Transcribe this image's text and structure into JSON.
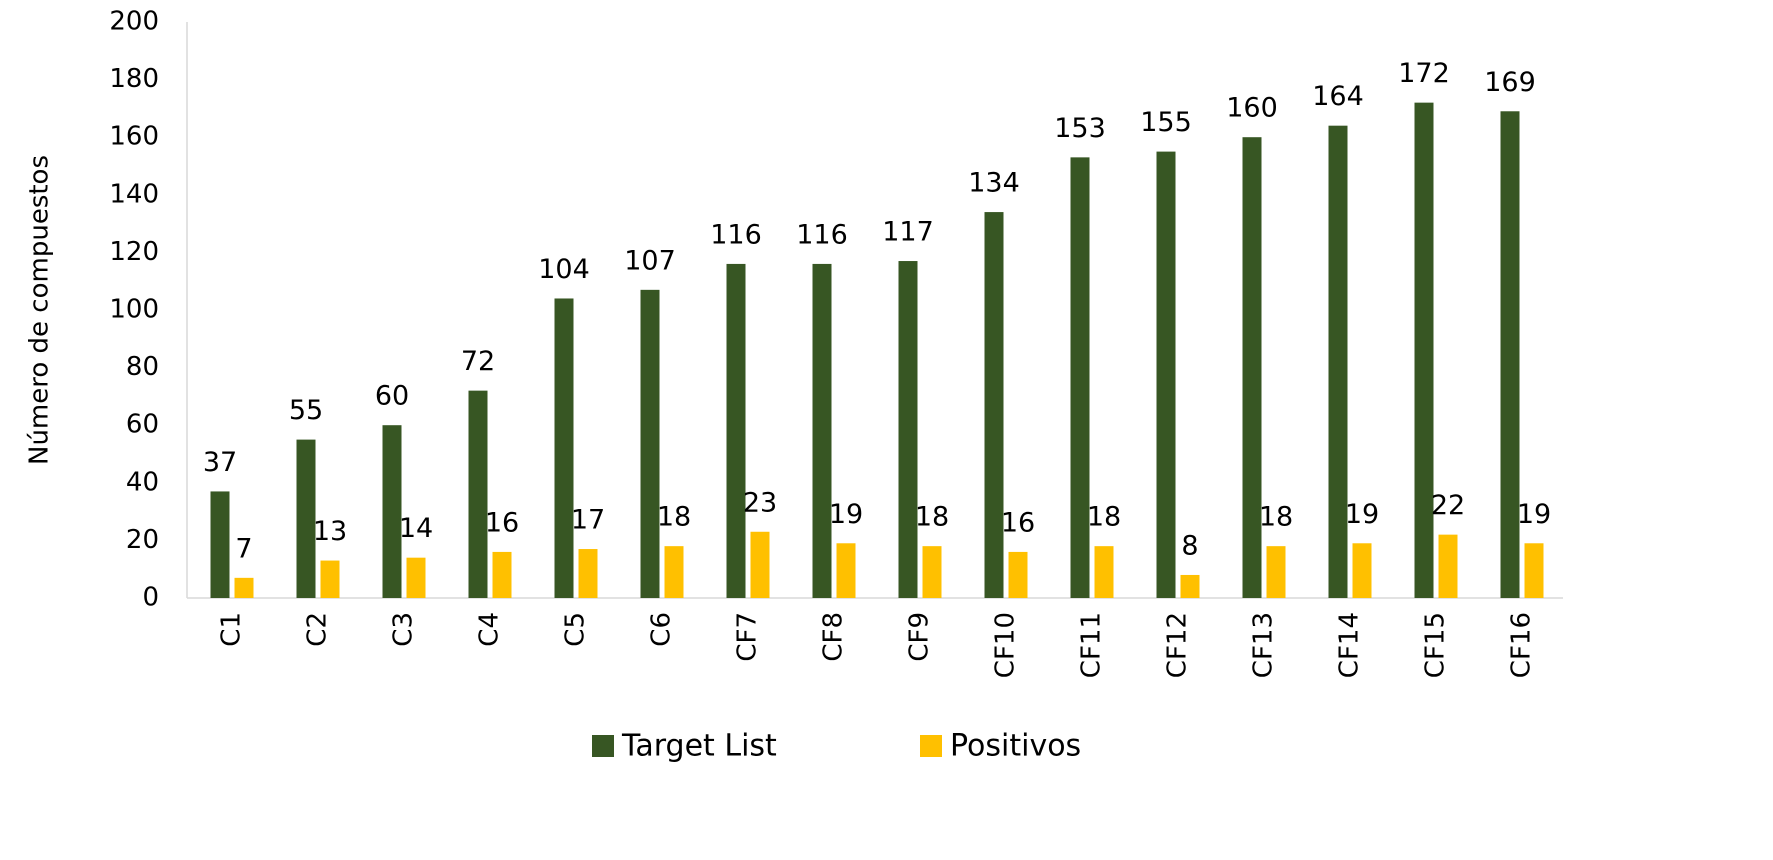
{
  "chart_data": {
    "type": "bar",
    "y_label": "Número de compuestos",
    "categories": [
      "C1",
      "C2",
      "C3",
      "C4",
      "C5",
      "C6",
      "CF7",
      "CF8",
      "CF9",
      "CF10",
      "CF11",
      "CF12",
      "CF13",
      "CF14",
      "CF15",
      "CF16"
    ],
    "series": [
      {
        "name": "Target List",
        "color": "#375623",
        "values": [
          37,
          55,
          60,
          72,
          104,
          107,
          116,
          116,
          117,
          134,
          153,
          155,
          160,
          164,
          172,
          169
        ]
      },
      {
        "name": "Positivos",
        "color": "#ffc000",
        "values": [
          7,
          13,
          14,
          16,
          17,
          18,
          23,
          19,
          18,
          16,
          18,
          8,
          18,
          19,
          22,
          19
        ]
      }
    ],
    "ylim": [
      0,
      200
    ],
    "yticks": [
      0,
      20,
      40,
      60,
      80,
      100,
      120,
      140,
      160,
      180,
      200
    ],
    "grid": false,
    "legend": "bottom"
  }
}
